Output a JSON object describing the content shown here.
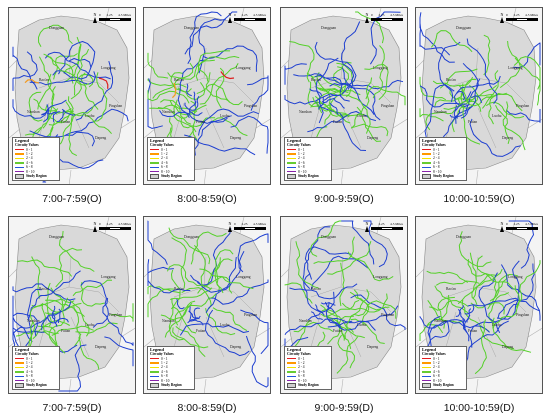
{
  "panels": [
    {
      "caption": "7:00-7:59(O)",
      "places": [
        "Dongguan",
        "Longgang",
        "Pingshan",
        "Dapeng",
        "Futian",
        "Luohu",
        "Nanshan",
        "Bao'an"
      ]
    },
    {
      "caption": "8:00-8:59(O)",
      "places": [
        "Dongguan",
        "Longgang",
        "Pingshan",
        "Dapeng",
        "Futian",
        "Luohu",
        "Nanshan",
        "Bao'an"
      ]
    },
    {
      "caption": "9:00-9:59(O)",
      "places": [
        "Dongguan",
        "Longgang",
        "Pingshan",
        "Dapeng",
        "Futian",
        "Luohu",
        "Nanshan",
        "Bao'an"
      ]
    },
    {
      "caption": "10:00-10:59(O)",
      "places": [
        "Dongguan",
        "Longgang",
        "Pingshan",
        "Dapeng",
        "Futian",
        "Luohu",
        "Nanshan",
        "Bao'an"
      ]
    },
    {
      "caption": "7:00-7:59(D)",
      "places": [
        "Dongguan",
        "Longgang",
        "Pingshan",
        "Dapeng",
        "Futian",
        "Luohu",
        "Nanshan",
        "Bao'an"
      ]
    },
    {
      "caption": "8:00-8:59(D)",
      "places": [
        "Dongguan",
        "Longgang",
        "Pingshan",
        "Dapeng",
        "Futian",
        "Luohu",
        "Nanshan",
        "Bao'an"
      ]
    },
    {
      "caption": "9:00-9:59(D)",
      "places": [
        "Dongguan",
        "Longgang",
        "Pingshan",
        "Dapeng",
        "Futian",
        "Luohu",
        "Nanshan",
        "Bao'an"
      ]
    },
    {
      "caption": "10:00-10:59(D)",
      "places": [
        "Dongguan",
        "Longgang",
        "Pingshan",
        "Dapeng",
        "Futian",
        "Luohu",
        "Nanshan",
        "Bao'an"
      ]
    }
  ],
  "legend": {
    "title": "Legend",
    "subtitle": "Circuity Values",
    "classes": [
      {
        "label": "0 - 1",
        "color": "#e31a1c"
      },
      {
        "label": "1 - 2",
        "color": "#ff9900"
      },
      {
        "label": "2 - 4",
        "color": "#f2e200"
      },
      {
        "label": "4 - 6",
        "color": "#66cc33"
      },
      {
        "label": "6 - 8",
        "color": "#2255dd"
      },
      {
        "label": "8 - 10",
        "color": "#8822aa"
      }
    ],
    "study_region_label": "Study Region"
  },
  "north_label": "N",
  "scale_labels": [
    "0",
    "2.25",
    "4.5 Miles"
  ],
  "colors": {
    "region_fill": "#d9d9d9",
    "outer_fill": "#f4f4f4",
    "border": "#8a8a8a",
    "green": "#55d02a",
    "blue": "#1e3fd0",
    "red": "#dd1f1f",
    "orange": "#f29a1f",
    "yellow": "#f0e020"
  }
}
